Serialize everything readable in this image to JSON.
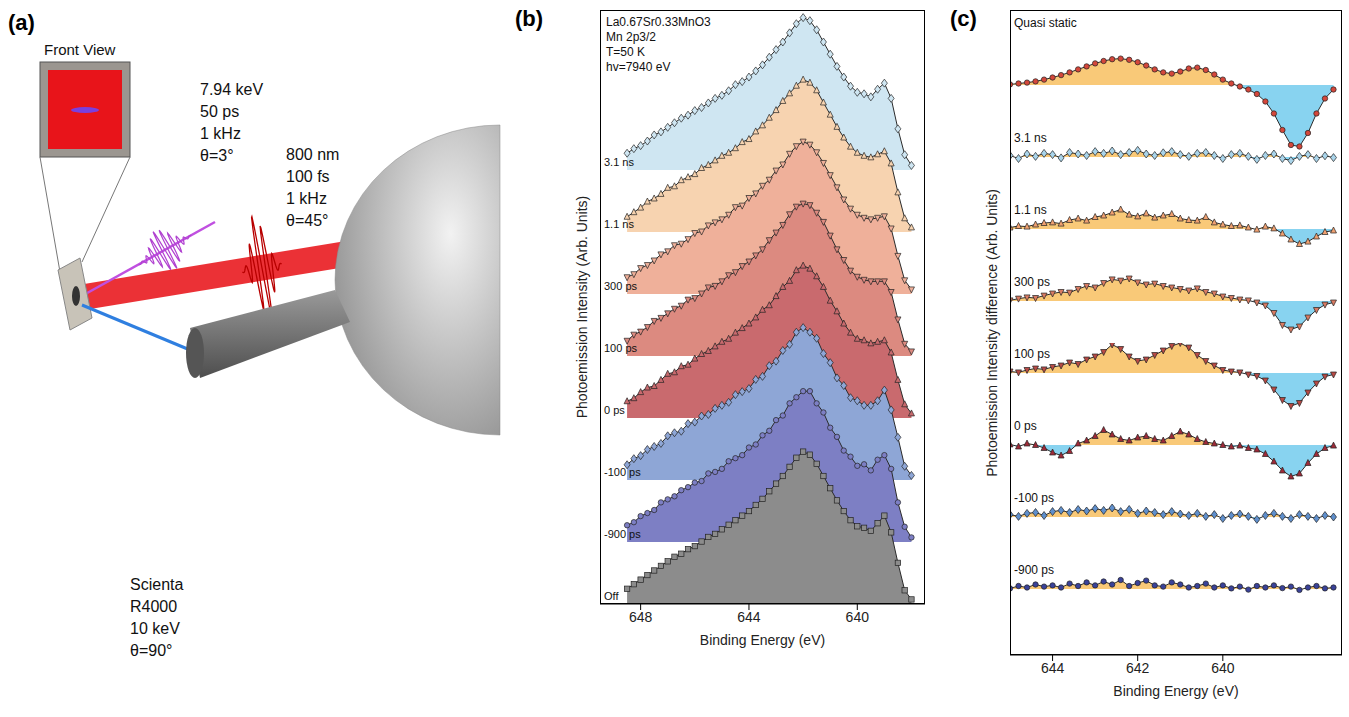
{
  "diagram": {
    "label": "(a)",
    "front_view": "Front View",
    "xray": [
      "7.94 keV",
      "50 ps",
      "1 kHz",
      "θ=3°"
    ],
    "laser": [
      "800 nm",
      "100 fs",
      "1 kHz",
      "θ=45°"
    ],
    "analyzer": [
      "Scienta",
      "R4000",
      "10 keV",
      "θ=90°"
    ]
  },
  "chart_data": [
    {
      "label": "(b)",
      "type": "area",
      "annotations": [
        "La0.67Sr0.33MnO3",
        "Mn 2p3/2",
        "T=50 K",
        "hv=7940 eV"
      ],
      "x_label": "Binding Energy (eV)",
      "y_label": "Photoemission Intensity (Arb. Units)",
      "tick_labels": "x",
      "x": [
        648.5,
        648.25,
        648.0,
        647.75,
        647.5,
        647.25,
        647.0,
        646.75,
        646.5,
        646.25,
        646.0,
        645.75,
        645.5,
        645.25,
        645.0,
        644.75,
        644.5,
        644.25,
        644.0,
        643.75,
        643.5,
        643.25,
        643.0,
        642.75,
        642.5,
        642.25,
        642.0,
        641.75,
        641.5,
        641.25,
        641.0,
        640.75,
        640.5,
        640.25,
        640.0,
        639.75,
        639.5,
        639.25,
        639.0,
        638.75,
        638.5,
        638.25,
        638.0
      ],
      "xlim": [
        649.5,
        637.5
      ],
      "xticks": [
        648,
        644,
        640
      ],
      "ylim": [
        0,
        1.05
      ],
      "series": [
        {
          "name": "3.1 ns",
          "color": "#cfe6f2",
          "marker": "diamond",
          "values": [
            0.11,
            0.14,
            0.16,
            0.19,
            0.23,
            0.25,
            0.28,
            0.31,
            0.34,
            0.36,
            0.39,
            0.41,
            0.44,
            0.47,
            0.49,
            0.52,
            0.56,
            0.58,
            0.61,
            0.65,
            0.69,
            0.74,
            0.79,
            0.84,
            0.9,
            0.96,
            1.0,
            0.98,
            0.92,
            0.84,
            0.76,
            0.68,
            0.61,
            0.55,
            0.51,
            0.5,
            0.48,
            0.53,
            0.57,
            0.47,
            0.27,
            0.1,
            0.03
          ]
        },
        {
          "name": "1.1 ns",
          "color": "#f7d3b0",
          "marker": "triangle",
          "values": [
            0.1,
            0.13,
            0.16,
            0.2,
            0.22,
            0.25,
            0.29,
            0.3,
            0.34,
            0.36,
            0.38,
            0.42,
            0.44,
            0.47,
            0.5,
            0.52,
            0.55,
            0.59,
            0.61,
            0.66,
            0.7,
            0.75,
            0.8,
            0.86,
            0.91,
            0.96,
            1.0,
            0.98,
            0.93,
            0.85,
            0.77,
            0.69,
            0.62,
            0.56,
            0.52,
            0.5,
            0.49,
            0.51,
            0.53,
            0.45,
            0.26,
            0.09,
            0.03
          ]
        },
        {
          "name": "300 ps",
          "color": "#efb09a",
          "marker": "triangle-down",
          "values": [
            0.11,
            0.13,
            0.17,
            0.19,
            0.22,
            0.26,
            0.28,
            0.32,
            0.33,
            0.36,
            0.4,
            0.41,
            0.45,
            0.47,
            0.49,
            0.52,
            0.57,
            0.58,
            0.63,
            0.66,
            0.71,
            0.75,
            0.81,
            0.85,
            0.92,
            0.97,
            1.0,
            0.98,
            0.93,
            0.86,
            0.78,
            0.7,
            0.62,
            0.56,
            0.52,
            0.5,
            0.49,
            0.5,
            0.51,
            0.43,
            0.25,
            0.09,
            0.03
          ]
        },
        {
          "name": "100 ps",
          "color": "#dc8a80",
          "marker": "triangle-down",
          "values": [
            0.1,
            0.14,
            0.16,
            0.19,
            0.23,
            0.25,
            0.28,
            0.31,
            0.33,
            0.37,
            0.38,
            0.41,
            0.45,
            0.46,
            0.49,
            0.53,
            0.55,
            0.59,
            0.62,
            0.66,
            0.7,
            0.76,
            0.81,
            0.86,
            0.93,
            0.98,
            1.0,
            0.99,
            0.94,
            0.88,
            0.79,
            0.7,
            0.63,
            0.56,
            0.52,
            0.5,
            0.49,
            0.49,
            0.49,
            0.42,
            0.24,
            0.08,
            0.03
          ]
        },
        {
          "name": "0 ps",
          "color": "#c96a6e",
          "marker": "triangle",
          "values": [
            0.11,
            0.13,
            0.17,
            0.2,
            0.21,
            0.25,
            0.29,
            0.3,
            0.34,
            0.35,
            0.39,
            0.42,
            0.44,
            0.47,
            0.5,
            0.52,
            0.56,
            0.59,
            0.62,
            0.66,
            0.71,
            0.74,
            0.8,
            0.86,
            0.9,
            0.97,
            1.0,
            0.98,
            0.93,
            0.86,
            0.77,
            0.7,
            0.62,
            0.56,
            0.52,
            0.51,
            0.49,
            0.5,
            0.51,
            0.43,
            0.25,
            0.09,
            0.03
          ]
        },
        {
          "name": "-100 ps",
          "color": "#8ea6d6",
          "marker": "diamond",
          "values": [
            0.1,
            0.14,
            0.16,
            0.2,
            0.22,
            0.24,
            0.29,
            0.31,
            0.32,
            0.37,
            0.38,
            0.42,
            0.43,
            0.47,
            0.49,
            0.51,
            0.56,
            0.58,
            0.6,
            0.66,
            0.68,
            0.75,
            0.78,
            0.85,
            0.89,
            0.97,
            1.0,
            0.97,
            0.93,
            0.83,
            0.77,
            0.67,
            0.62,
            0.54,
            0.52,
            0.49,
            0.49,
            0.52,
            0.59,
            0.46,
            0.28,
            0.09,
            0.03
          ]
        },
        {
          "name": "-900 ps",
          "color": "#7d7fc4",
          "marker": "circle",
          "values": [
            0.11,
            0.13,
            0.17,
            0.19,
            0.21,
            0.26,
            0.28,
            0.3,
            0.34,
            0.36,
            0.39,
            0.4,
            0.45,
            0.46,
            0.48,
            0.53,
            0.55,
            0.57,
            0.62,
            0.64,
            0.7,
            0.73,
            0.8,
            0.83,
            0.91,
            0.95,
            0.99,
            0.99,
            0.91,
            0.85,
            0.75,
            0.69,
            0.6,
            0.56,
            0.5,
            0.51,
            0.47,
            0.54,
            0.57,
            0.48,
            0.26,
            0.1,
            0.03
          ]
        },
        {
          "name": "Off",
          "color": "#8c8c8c",
          "marker": "square",
          "values": [
            0.1,
            0.13,
            0.16,
            0.19,
            0.22,
            0.25,
            0.28,
            0.31,
            0.33,
            0.36,
            0.38,
            0.41,
            0.44,
            0.46,
            0.49,
            0.52,
            0.55,
            0.58,
            0.61,
            0.65,
            0.69,
            0.74,
            0.79,
            0.84,
            0.9,
            0.96,
            1.0,
            0.98,
            0.92,
            0.84,
            0.76,
            0.68,
            0.61,
            0.55,
            0.51,
            0.5,
            0.48,
            0.53,
            0.58,
            0.47,
            0.27,
            0.09,
            0.03
          ]
        }
      ]
    },
    {
      "label": "(c)",
      "type": "area",
      "x_label": "Binding Energy (eV)",
      "y_label": "Photoemission Intensity difference (Arb. Units)",
      "tick_labels": "x",
      "x": [
        645.0,
        644.8,
        644.6,
        644.4,
        644.2,
        644.0,
        643.8,
        643.6,
        643.4,
        643.2,
        643.0,
        642.8,
        642.6,
        642.4,
        642.2,
        642.0,
        641.8,
        641.6,
        641.4,
        641.2,
        641.0,
        640.8,
        640.6,
        640.4,
        640.2,
        640.0,
        639.8,
        639.6,
        639.4,
        639.2,
        639.0,
        638.8,
        638.6,
        638.4,
        638.2,
        638.0,
        637.8,
        637.6,
        637.4
      ],
      "xlim": [
        645.0,
        637.2
      ],
      "xticks": [
        644,
        642,
        640
      ],
      "ylim": [
        -2.2,
        1.0
      ],
      "series": [
        {
          "name": "Quasi static",
          "color": "#d4473b",
          "marker": "circle",
          "values": [
            0.02,
            0.05,
            0.08,
            0.12,
            0.18,
            0.25,
            0.33,
            0.42,
            0.52,
            0.62,
            0.72,
            0.8,
            0.86,
            0.88,
            0.84,
            0.76,
            0.65,
            0.52,
            0.42,
            0.38,
            0.45,
            0.55,
            0.58,
            0.5,
            0.35,
            0.18,
            0.05,
            -0.05,
            -0.15,
            -0.3,
            -0.55,
            -0.95,
            -1.5,
            -2.0,
            -2.05,
            -1.6,
            -0.95,
            -0.45,
            -0.15
          ]
        },
        {
          "name": "3.1 ns",
          "color": "#a9d4ea",
          "marker": "diamond",
          "values": [
            0.05,
            -0.05,
            0.1,
            0.02,
            0.12,
            0.08,
            -0.03,
            0.15,
            0.1,
            0.05,
            0.18,
            0.12,
            0.2,
            0.08,
            0.15,
            0.22,
            0.1,
            0.05,
            0.14,
            0.18,
            0.08,
            0.02,
            0.12,
            0.15,
            0.05,
            -0.05,
            0.08,
            0.12,
            0.02,
            -0.08,
            0.05,
            0.1,
            -0.05,
            -0.12,
            0.02,
            0.08,
            -0.05,
            0.04,
            -0.02
          ]
        },
        {
          "name": "1.1 ns",
          "color": "#f0a070",
          "marker": "triangle",
          "values": [
            0.05,
            0.1,
            0.08,
            0.15,
            0.2,
            0.22,
            0.18,
            0.3,
            0.35,
            0.28,
            0.4,
            0.45,
            0.55,
            0.65,
            0.48,
            0.42,
            0.52,
            0.38,
            0.45,
            0.5,
            0.35,
            0.3,
            0.28,
            0.4,
            0.22,
            0.15,
            0.1,
            0.12,
            0.05,
            -0.02,
            0.08,
            0.02,
            -0.15,
            -0.35,
            -0.5,
            -0.42,
            -0.25,
            -0.1,
            -0.05
          ]
        },
        {
          "name": "300 ps",
          "color": "#d97b63",
          "marker": "triangle-down",
          "values": [
            0.02,
            0.08,
            0.12,
            0.1,
            0.18,
            0.25,
            0.3,
            0.28,
            0.4,
            0.5,
            0.45,
            0.6,
            0.72,
            0.68,
            0.75,
            0.62,
            0.55,
            0.58,
            0.5,
            0.45,
            0.4,
            0.35,
            0.42,
            0.3,
            0.25,
            0.15,
            0.1,
            0.05,
            0.02,
            -0.05,
            -0.15,
            -0.4,
            -0.8,
            -0.95,
            -0.85,
            -0.55,
            -0.3,
            -0.12,
            -0.05
          ]
        },
        {
          "name": "100 ps",
          "color": "#b84a45",
          "marker": "triangle-down",
          "values": [
            0.05,
            0.02,
            0.1,
            0.15,
            0.12,
            0.2,
            0.25,
            0.35,
            0.3,
            0.45,
            0.55,
            0.7,
            0.95,
            0.8,
            0.55,
            0.4,
            0.45,
            0.6,
            0.75,
            0.9,
            1.0,
            0.85,
            0.6,
            0.4,
            0.25,
            0.1,
            0.05,
            0.02,
            -0.05,
            -0.1,
            -0.25,
            -0.55,
            -0.9,
            -1.1,
            -1.0,
            -0.65,
            -0.35,
            -0.12,
            -0.05
          ]
        },
        {
          "name": "0 ps",
          "color": "#9e2a38",
          "marker": "triangle",
          "values": [
            0.02,
            -0.05,
            0.05,
            0.0,
            -0.1,
            -0.25,
            -0.35,
            -0.2,
            0.05,
            0.15,
            0.3,
            0.5,
            0.35,
            0.2,
            0.15,
            0.25,
            0.3,
            0.2,
            0.15,
            0.3,
            0.45,
            0.35,
            0.2,
            0.1,
            0.05,
            0.0,
            -0.05,
            -0.02,
            -0.1,
            -0.15,
            -0.3,
            -0.55,
            -0.85,
            -1.05,
            -0.95,
            -0.6,
            -0.3,
            -0.1,
            -0.02
          ]
        },
        {
          "name": "-100 ps",
          "color": "#5f8fcc",
          "marker": "diamond",
          "values": [
            0.08,
            0.02,
            0.12,
            0.15,
            0.05,
            0.18,
            0.22,
            0.15,
            0.25,
            0.2,
            0.28,
            0.22,
            0.3,
            0.18,
            0.25,
            0.12,
            0.2,
            0.15,
            0.08,
            0.18,
            0.1,
            0.05,
            0.12,
            0.02,
            0.08,
            -0.05,
            0.05,
            0.1,
            0.02,
            -0.08,
            0.05,
            0.12,
            0.02,
            -0.05,
            0.08,
            0.02,
            -0.05,
            0.05,
            0.0
          ]
        },
        {
          "name": "-900 ps",
          "color": "#3a4299",
          "marker": "circle",
          "values": [
            0.02,
            0.1,
            0.05,
            0.15,
            0.08,
            0.12,
            0.05,
            0.18,
            0.1,
            0.22,
            0.12,
            0.25,
            0.15,
            0.3,
            0.1,
            0.2,
            0.28,
            0.12,
            0.08,
            0.22,
            0.15,
            0.05,
            0.1,
            0.18,
            0.05,
            0.12,
            0.02,
            0.08,
            -0.02,
            0.1,
            0.05,
            0.12,
            0.03,
            0.08,
            -0.03,
            0.05,
            0.1,
            0.02,
            0.05
          ]
        }
      ]
    }
  ]
}
